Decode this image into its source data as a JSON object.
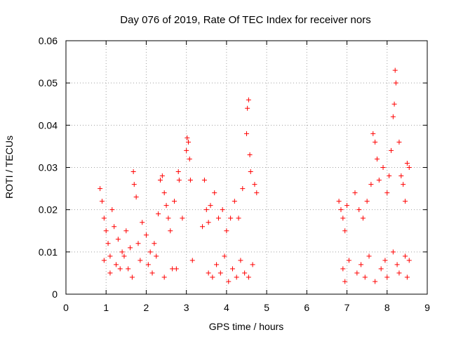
{
  "chart_data": {
    "type": "scatter",
    "title": "Day 076 of 2019, Rate Of TEC Index for receiver nors",
    "xlabel": "GPS time / hours",
    "ylabel": "ROTI / TECUs",
    "xlim": [
      0,
      9
    ],
    "ylim": [
      0,
      0.06
    ],
    "x_ticks": [
      0,
      1,
      2,
      3,
      4,
      5,
      6,
      7,
      8,
      9
    ],
    "x_tick_labels": [
      "0",
      "1",
      "2",
      "3",
      "4",
      "5",
      "6",
      "7",
      "8",
      "9"
    ],
    "y_ticks": [
      0,
      0.01,
      0.02,
      0.03,
      0.04,
      0.05,
      0.06
    ],
    "y_tick_labels": [
      "0",
      "0.01",
      "0.02",
      "0.03",
      "0.04",
      "0.05",
      "0.06"
    ],
    "grid": true,
    "marker": "+",
    "marker_color": "#ff0000",
    "series": [
      {
        "name": "ROTI",
        "x": [
          0.85,
          0.9,
          0.95,
          1.0,
          1.05,
          1.1,
          1.15,
          1.2,
          1.3,
          1.4,
          1.5,
          1.6,
          1.68,
          1.7,
          1.75,
          1.8,
          1.9,
          2.0,
          2.1,
          2.2,
          2.3,
          2.35,
          2.4,
          2.45,
          2.5,
          2.55,
          2.6,
          2.7,
          2.8,
          2.82,
          2.9,
          3.0,
          3.02,
          3.05,
          3.08,
          3.1,
          3.4,
          3.45,
          3.5,
          3.55,
          3.6,
          3.7,
          3.8,
          3.9,
          4.0,
          4.1,
          4.2,
          4.3,
          4.4,
          4.5,
          4.52,
          4.55,
          4.58,
          4.6,
          4.7,
          4.75,
          6.8,
          6.85,
          6.9,
          6.95,
          7.0,
          7.2,
          7.3,
          7.4,
          7.5,
          7.6,
          7.65,
          7.7,
          7.75,
          7.8,
          7.9,
          8.0,
          8.05,
          8.1,
          8.15,
          8.18,
          8.2,
          8.22,
          8.3,
          8.35,
          8.4,
          8.45,
          8.5,
          8.55,
          0.95,
          1.25,
          1.45,
          1.55,
          1.85,
          2.05,
          2.25,
          2.65,
          3.15,
          3.55,
          3.75,
          3.95,
          4.15,
          4.35,
          4.45,
          4.65,
          6.9,
          7.05,
          7.35,
          7.55,
          7.85,
          7.95,
          8.15,
          8.25,
          8.45,
          8.55,
          1.1,
          1.35,
          1.65,
          2.15,
          2.45,
          2.75,
          3.65,
          3.85,
          4.05,
          4.25,
          4.55,
          6.95,
          7.25,
          7.45,
          7.7,
          8.0,
          8.3,
          8.5
        ],
        "y": [
          0.025,
          0.022,
          0.018,
          0.015,
          0.012,
          0.009,
          0.02,
          0.016,
          0.013,
          0.01,
          0.015,
          0.011,
          0.029,
          0.026,
          0.023,
          0.012,
          0.017,
          0.014,
          0.01,
          0.012,
          0.019,
          0.027,
          0.028,
          0.024,
          0.021,
          0.018,
          0.015,
          0.022,
          0.029,
          0.027,
          0.018,
          0.034,
          0.037,
          0.036,
          0.032,
          0.027,
          0.016,
          0.027,
          0.02,
          0.017,
          0.021,
          0.024,
          0.018,
          0.02,
          0.015,
          0.018,
          0.022,
          0.018,
          0.025,
          0.038,
          0.044,
          0.046,
          0.033,
          0.029,
          0.026,
          0.024,
          0.022,
          0.02,
          0.018,
          0.015,
          0.021,
          0.024,
          0.02,
          0.018,
          0.022,
          0.026,
          0.038,
          0.036,
          0.032,
          0.027,
          0.03,
          0.024,
          0.028,
          0.034,
          0.042,
          0.045,
          0.053,
          0.05,
          0.036,
          0.028,
          0.026,
          0.022,
          0.031,
          0.03,
          0.008,
          0.007,
          0.009,
          0.006,
          0.008,
          0.007,
          0.009,
          0.006,
          0.008,
          0.005,
          0.007,
          0.009,
          0.006,
          0.008,
          0.005,
          0.007,
          0.006,
          0.008,
          0.007,
          0.009,
          0.006,
          0.008,
          0.01,
          0.007,
          0.009,
          0.008,
          0.005,
          0.006,
          0.004,
          0.005,
          0.004,
          0.006,
          0.004,
          0.005,
          0.003,
          0.004,
          0.004,
          0.003,
          0.005,
          0.004,
          0.003,
          0.004,
          0.005,
          0.004
        ]
      }
    ]
  }
}
